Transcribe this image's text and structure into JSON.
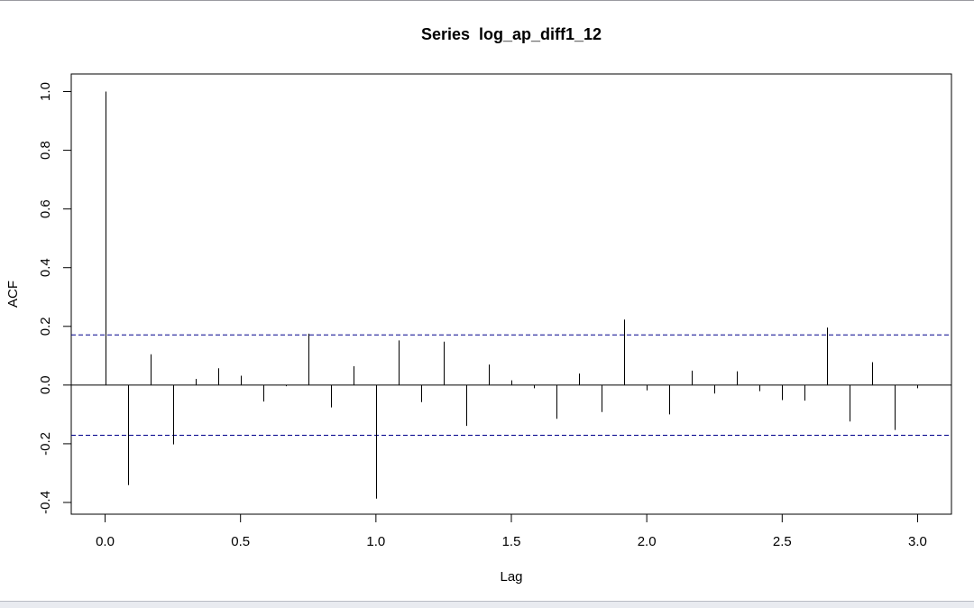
{
  "chart_data": {
    "type": "bar",
    "title": "Series  log_ap_diff1_12",
    "xlabel": "Lag",
    "ylabel": "ACF",
    "xlim": [
      -0.125,
      3.125
    ],
    "ylim": [
      -0.44,
      1.06
    ],
    "x_ticks": [
      "0.0",
      "0.5",
      "1.0",
      "1.5",
      "2.0",
      "2.5",
      "3.0"
    ],
    "y_ticks": [
      "-0.4",
      "-0.2",
      "0.0",
      "0.2",
      "0.4",
      "0.6",
      "0.8",
      "1.0"
    ],
    "confidence_bound": 0.171,
    "confidence_color": "#00008b",
    "line_color": "#000000",
    "lags": [
      0.0,
      0.0833,
      0.1667,
      0.25,
      0.3333,
      0.4167,
      0.5,
      0.5833,
      0.6667,
      0.75,
      0.8333,
      0.9167,
      1.0,
      1.0833,
      1.1667,
      1.25,
      1.3333,
      1.4167,
      1.5,
      1.5833,
      1.6667,
      1.75,
      1.8333,
      1.9167,
      2.0,
      2.0833,
      2.1667,
      2.25,
      2.3333,
      2.4167,
      2.5,
      2.5833,
      2.6667,
      2.75,
      2.8333,
      2.9167,
      3.0
    ],
    "values": [
      1.0,
      -0.341,
      0.105,
      -0.202,
      0.021,
      0.057,
      0.032,
      -0.056,
      -0.004,
      0.175,
      -0.076,
      0.064,
      -0.387,
      0.152,
      -0.058,
      0.148,
      -0.139,
      0.07,
      0.016,
      -0.011,
      -0.115,
      0.039,
      -0.092,
      0.223,
      -0.018,
      -0.1,
      0.049,
      -0.029,
      0.047,
      -0.021,
      -0.051,
      -0.053,
      0.196,
      -0.124,
      0.078,
      -0.153,
      -0.011
    ]
  }
}
